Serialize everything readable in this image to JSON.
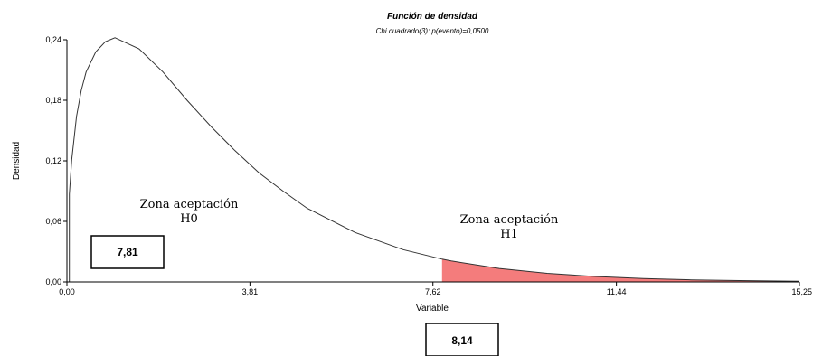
{
  "chart_data": {
    "type": "area",
    "title": "Función de densidad",
    "subtitle": "Chi cuadrado(3): p(evento)=0,0500",
    "xlabel": "Variable",
    "ylabel": "Densidad",
    "xlim": [
      0,
      15.25
    ],
    "ylim": [
      0,
      0.24
    ],
    "x_ticks": [
      "0,00",
      "3,81",
      "7,62",
      "11,44",
      "15,25"
    ],
    "y_ticks": [
      "0,00",
      "0,06",
      "0,12",
      "0,18",
      "0,24"
    ],
    "series": [
      {
        "x": [
          0.05,
          0.1,
          0.2,
          0.3,
          0.4,
          0.6,
          0.8,
          1.0,
          1.5,
          2.0,
          2.5,
          3.0,
          3.5,
          4.0,
          4.5,
          5.0,
          6.0,
          7.0,
          7.81,
          8.0,
          9.0,
          10.0,
          11.0,
          12.0,
          13.0,
          14.0,
          15.0,
          15.25
        ],
        "y": [
          0.087,
          0.121,
          0.164,
          0.19,
          0.208,
          0.228,
          0.238,
          0.242,
          0.231,
          0.208,
          0.18,
          0.154,
          0.13,
          0.108,
          0.09,
          0.073,
          0.049,
          0.032,
          0.0226,
          0.0208,
          0.0133,
          0.0085,
          0.0054,
          0.0034,
          0.0021,
          0.0013,
          0.0008,
          0.0007
        ]
      }
    ],
    "shaded_region": {
      "from": 7.81,
      "to": 15.25,
      "color": "#f47c7c"
    },
    "annotations": [
      {
        "text_line1": "Zona aceptación",
        "text_line2": "H0"
      },
      {
        "text_line1": "Zona aceptación",
        "text_line2": "H1"
      }
    ],
    "boxes": [
      {
        "label": "7,81"
      },
      {
        "label": "8,14"
      }
    ],
    "grid": false
  }
}
